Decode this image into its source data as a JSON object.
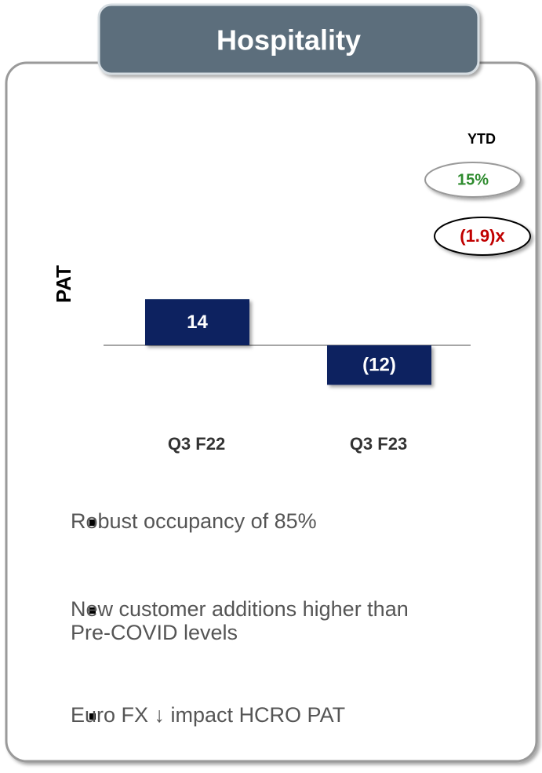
{
  "chart_data": {
    "type": "bar",
    "title": "Hospitality",
    "y_label": "PAT",
    "categories": [
      "Q3 F22",
      "Q3 F23"
    ],
    "values": [
      14,
      -12
    ],
    "value_labels": [
      "14",
      "(12)"
    ],
    "color": "#0b2461",
    "annotations": {
      "ytd_label": "YTD",
      "ytd_growth": "15%",
      "ytd_multiple": "(1.9)x"
    }
  },
  "notes": [
    [
      "Robust occupancy of 85%"
    ],
    [
      "New customer additions higher than",
      "Pre-COVID levels"
    ],
    [
      "Euro FX ↓ impact HCRO PAT"
    ]
  ]
}
